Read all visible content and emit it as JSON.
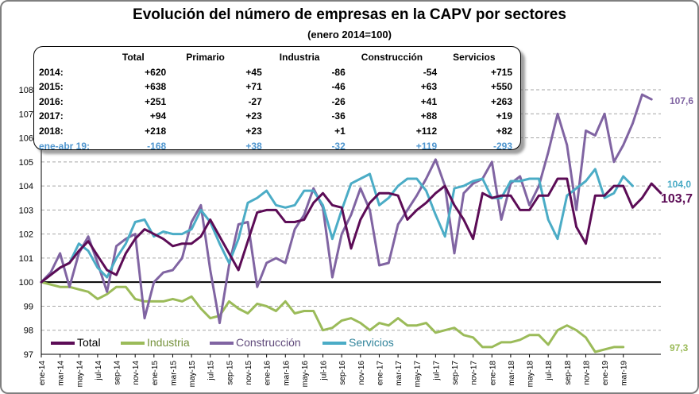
{
  "title": "Evolución del número de empresas en la CAPV por sectores",
  "subtitle": "(enero 2014=100)",
  "colors": {
    "total": "#5c0c56",
    "industria": "#9bbb59",
    "construccion": "#8064a2",
    "servicios": "#4bacc6",
    "axis": "#000000",
    "grid": "#a6a6a6",
    "highlight": "#4f96cf"
  },
  "table": {
    "headers": [
      "",
      "Total",
      "Primario",
      "Industria",
      "Construcción",
      "Servicios"
    ],
    "rows": [
      {
        "label": "2014:",
        "values": [
          "+620",
          "+45",
          "-86",
          "-54",
          "+715"
        ],
        "highlight": false
      },
      {
        "label": "2015:",
        "values": [
          "+638",
          "+71",
          "-46",
          "+63",
          "+550"
        ],
        "highlight": false
      },
      {
        "label": "2016:",
        "values": [
          "+251",
          "-27",
          "-26",
          "+41",
          "+263"
        ],
        "highlight": false
      },
      {
        "label": "2017:",
        "values": [
          "+94",
          "+23",
          "-36",
          "+88",
          "+19"
        ],
        "highlight": false
      },
      {
        "label": "2018:",
        "values": [
          "+218",
          "+23",
          "+1",
          "+112",
          "+82"
        ],
        "highlight": false
      },
      {
        "label": "ene-abr 19:",
        "values": [
          "-168",
          "+38",
          "-32",
          "+119",
          "-293"
        ],
        "highlight": true
      }
    ]
  },
  "legend": [
    "Total",
    "Industria",
    "Construcción",
    "Servicios"
  ],
  "end_labels": {
    "total": "103,7",
    "industria": "97,3",
    "construccion": "107,6",
    "servicios": "104,0"
  },
  "chart_data": {
    "type": "line",
    "title": "Evolución del número de empresas en la CAPV por sectores",
    "subtitle": "(enero 2014=100)",
    "ylim": [
      97,
      108
    ],
    "yticks": [
      97,
      98,
      99,
      100,
      101,
      102,
      103,
      104,
      105,
      106,
      107,
      108
    ],
    "grid": true,
    "reference_line": 100,
    "xtick_labels": [
      "ene-14",
      "mar-14",
      "may-14",
      "jul-14",
      "sep-14",
      "nov-14",
      "ene-15",
      "mar-15",
      "may-15",
      "jul-15",
      "sep-15",
      "nov-15",
      "ene-16",
      "mar-16",
      "may-16",
      "jul-16",
      "sep-16",
      "nov-16",
      "ene-17",
      "mar-17",
      "may-17",
      "jul-17",
      "sep-17",
      "nov-17",
      "ene-18",
      "mar-18",
      "may-18",
      "jul-18",
      "sep-18",
      "nov-18",
      "ene-19",
      "mar-19"
    ],
    "legend_position": "bottom-left",
    "series": [
      {
        "name": "Total",
        "key": "total",
        "values": [
          100,
          100.3,
          100.6,
          100.8,
          101.3,
          101.7,
          101.1,
          100.5,
          100.3,
          101.2,
          101.8,
          102.2,
          102.0,
          101.8,
          101.5,
          101.6,
          101.6,
          101.9,
          102.6,
          101.9,
          101.2,
          100.5,
          101.7,
          102.9,
          103.0,
          103.0,
          102.5,
          102.5,
          102.6,
          103.3,
          103.7,
          103.2,
          103.1,
          101.4,
          102.6,
          103.3,
          103.7,
          103.7,
          103.6,
          102.6,
          103.0,
          103.3,
          103.7,
          104.0,
          103.2,
          102.6,
          101.8,
          103.7,
          103.5,
          103.6,
          103.6,
          103.0,
          103.0,
          103.6,
          103.6,
          104.3,
          104.3,
          102.3,
          101.6,
          103.6,
          103.6,
          104.0,
          104.0,
          103.1,
          103.5,
          104.1,
          103.7
        ]
      },
      {
        "name": "Industria",
        "key": "industria",
        "values": [
          100,
          99.9,
          99.8,
          99.8,
          99.7,
          99.6,
          99.3,
          99.5,
          99.8,
          99.8,
          99.3,
          99.2,
          99.2,
          99.2,
          99.3,
          99.2,
          99.4,
          98.9,
          98.5,
          98.6,
          99.2,
          98.9,
          98.7,
          99.1,
          99.0,
          98.8,
          99.2,
          98.7,
          98.8,
          98.8,
          98.0,
          98.1,
          98.4,
          98.5,
          98.3,
          98.0,
          98.3,
          98.2,
          98.5,
          98.2,
          98.2,
          98.3,
          97.9,
          98.0,
          98.1,
          97.8,
          97.7,
          97.3,
          97.3,
          97.5,
          97.5,
          97.6,
          97.8,
          97.8,
          97.4,
          98.0,
          98.2,
          98.0,
          97.7,
          97.1,
          97.2,
          97.3,
          97.3
        ]
      },
      {
        "name": "Construcción",
        "key": "construccion",
        "values": [
          100,
          100.4,
          101.2,
          99.8,
          101.2,
          101.9,
          100.8,
          99.6,
          101.5,
          101.8,
          102.0,
          98.5,
          100.0,
          100.4,
          100.5,
          101.0,
          102.5,
          103.2,
          100.5,
          98.3,
          100.7,
          102.4,
          102.5,
          99.8,
          100.8,
          101.0,
          100.8,
          102.2,
          102.8,
          103.9,
          103.1,
          100.2,
          102.0,
          102.8,
          103.9,
          103.0,
          100.7,
          100.8,
          102.4,
          103.0,
          103.6,
          104.3,
          105.1,
          104.0,
          101.2,
          103.7,
          104.1,
          104.3,
          105.0,
          102.6,
          104.1,
          104.4,
          103.2,
          104.0,
          105.4,
          107.0,
          105.7,
          103.0,
          106.3,
          106.1,
          107.0,
          105.0,
          105.7,
          106.6,
          107.8,
          107.6
        ]
      },
      {
        "name": "Servicios",
        "key": "servicios",
        "values": [
          100,
          100.3,
          100.6,
          100.8,
          101.6,
          101.3,
          100.6,
          100.2,
          101.0,
          101.6,
          102.5,
          102.6,
          101.9,
          102.1,
          102.0,
          102.0,
          102.2,
          103.0,
          102.5,
          101.6,
          100.8,
          101.8,
          103.3,
          103.5,
          103.8,
          103.2,
          103.1,
          103.2,
          103.8,
          103.8,
          103.2,
          101.8,
          103.0,
          104.1,
          104.3,
          104.5,
          103.2,
          103.5,
          104.0,
          104.3,
          104.3,
          103.8,
          102.8,
          101.9,
          103.9,
          104.0,
          104.2,
          104.3,
          103.5,
          103.5,
          104.2,
          104.2,
          104.3,
          104.3,
          102.6,
          101.8,
          103.6,
          103.9,
          104.2,
          104.7,
          103.5,
          103.7,
          104.4,
          104.0
        ]
      }
    ]
  }
}
